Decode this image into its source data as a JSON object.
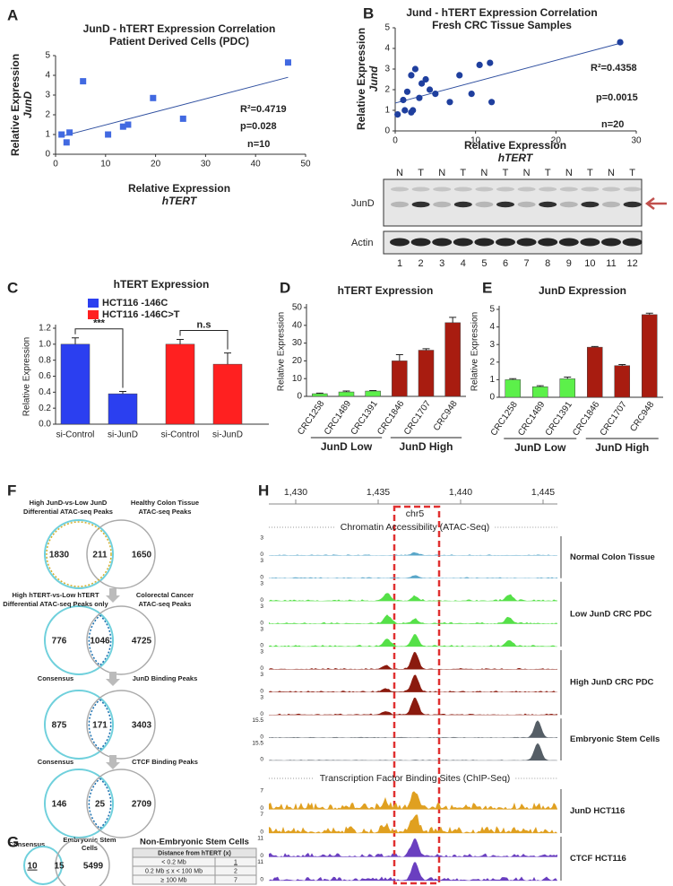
{
  "panel_labels": [
    "A",
    "B",
    "C",
    "D",
    "E",
    "F",
    "G",
    "H"
  ],
  "chart_data": [
    {
      "type": "scatter",
      "title": [
        "JunD - hTERT Expression Correlation",
        "Patient Derived Cells (PDC)"
      ],
      "x_label": [
        "Relative Expression",
        "hTERT"
      ],
      "y_label": [
        "Relative Expression",
        "JunD"
      ],
      "x": [
        1.2,
        2.2,
        2.8,
        5.5,
        10.5,
        13.5,
        14.5,
        19.5,
        25.5,
        46.5
      ],
      "values": [
        1.0,
        0.6,
        1.1,
        3.7,
        1.0,
        1.4,
        1.5,
        2.85,
        1.8,
        4.65
      ],
      "color": "#4169e1",
      "trend_line": {
        "x": [
          1.1,
          46.5
        ],
        "values": [
          0.9,
          3.9
        ]
      },
      "trend_color": "#3050a0",
      "xlim": [
        0,
        50
      ],
      "xticks": [
        0,
        10,
        20,
        30,
        40,
        50
      ],
      "ylim": [
        0,
        5
      ],
      "yticks": [
        0,
        1,
        2,
        3,
        4,
        5
      ],
      "annotations": [
        "R²=0.4719",
        "p=0.028",
        "n=10"
      ]
    },
    {
      "type": "scatter",
      "title": [
        "Jund - hTERT Expression Correlation",
        "Fresh CRC Tissue Samples"
      ],
      "x_label": [
        "Relative Expression",
        "hTERT"
      ],
      "y_label": [
        "Relative Expression",
        "Jund"
      ],
      "x": [
        0.3,
        1,
        1.2,
        1.5,
        2,
        2.2,
        2,
        2.5,
        3,
        3.3,
        3.8,
        4.3,
        5,
        6.8,
        8,
        9.5,
        10.5,
        11.8,
        12,
        28
      ],
      "values": [
        0.8,
        1.5,
        1.0,
        1.9,
        0.9,
        1.0,
        2.7,
        3.0,
        1.6,
        2.3,
        2.5,
        2.0,
        1.8,
        1.4,
        2.7,
        1.8,
        3.2,
        3.3,
        1.4,
        4.3
      ],
      "color": "#1f3f9e",
      "trend_line": {
        "x": [
          0,
          28
        ],
        "values": [
          1.35,
          4.25
        ]
      },
      "trend_color": "#3050a0",
      "xlim": [
        0,
        30
      ],
      "xticks": [
        0,
        10,
        20,
        30
      ],
      "ylim": [
        0,
        5
      ],
      "yticks": [
        0,
        1,
        2,
        3,
        4,
        5
      ],
      "annotations": [
        "R²=0.4358",
        "p=0.0015",
        "n=20"
      ]
    },
    {
      "type": "bar",
      "title": "hTERT Expression",
      "y_label": "Relative Expression",
      "categories": [
        "si-Control",
        "si-JunD",
        "si-Control",
        "si-JunD"
      ],
      "series": [
        {
          "name": "HCT116 -146C",
          "color": "#2b3ff0",
          "values": [
            1.0,
            0.38,
            null,
            null
          ],
          "errors": [
            0.08,
            0.03,
            null,
            null
          ]
        },
        {
          "name": "HCT116 -146C>T",
          "color": "#ff2020",
          "values": [
            null,
            null,
            1.0,
            0.75
          ],
          "errors": [
            null,
            null,
            0.06,
            0.14
          ]
        }
      ],
      "ylim": [
        0,
        1.2
      ],
      "yticks": [
        {
          "value": 0,
          "label": "0.0"
        },
        0.2,
        0.4,
        0.6,
        0.8,
        {
          "value": 1,
          "label": "1.0"
        },
        1.2
      ],
      "significance": [
        "***",
        "n.s"
      ]
    },
    {
      "type": "bar",
      "title": "hTERT Expression",
      "y_label": "Relative Expression",
      "categories": [
        "CRC1258",
        "CRC1489",
        "CRC1391",
        "CRC1846",
        "CRC1707",
        "CRC948"
      ],
      "values": [
        1.5,
        2.5,
        3,
        20,
        26,
        41.5
      ],
      "errors": [
        0.3,
        0.5,
        0.3,
        3.5,
        0.8,
        3
      ],
      "colors": [
        "#5cf04a",
        "#5cf04a",
        "#5cf04a",
        "#a81c10",
        "#a81c10",
        "#a81c10"
      ],
      "ylim": [
        0,
        50
      ],
      "yticks": [
        0,
        10,
        20,
        30,
        40,
        50
      ],
      "group_labels": [
        "JunD Low",
        "JunD High"
      ]
    },
    {
      "type": "bar",
      "title": "JunD Expression",
      "y_label": "Relative Expression",
      "categories": [
        "CRC1258",
        "CRC1489",
        "CRC1391",
        "CRC1846",
        "CRC1707",
        "CRC948"
      ],
      "values": [
        1,
        0.6,
        1.05,
        2.85,
        1.8,
        4.7
      ],
      "errors": [
        0.06,
        0.06,
        0.1,
        0.04,
        0.06,
        0.08
      ],
      "colors": [
        "#5cf04a",
        "#5cf04a",
        "#5cf04a",
        "#a81c10",
        "#a81c10",
        "#a81c10"
      ],
      "ylim": [
        0,
        5
      ],
      "yticks": [
        0,
        1,
        2,
        3,
        4,
        5
      ],
      "group_labels": [
        "JunD Low",
        "JunD High"
      ]
    }
  ],
  "blot": {
    "lanes_top": [
      "N",
      "T",
      "N",
      "T",
      "N",
      "T",
      "N",
      "T",
      "N",
      "T",
      "N",
      "T"
    ],
    "lanes_bottom": [
      "1",
      "2",
      "3",
      "4",
      "5",
      "6",
      "7",
      "8",
      "9",
      "10",
      "11",
      "12"
    ],
    "rows": [
      "JunD",
      "Actin"
    ]
  },
  "venn_f": [
    {
      "left_label": [
        "High JunD-vs-Low JunD",
        "Differential ATAC-seq Peaks"
      ],
      "right_label": [
        "Healthy Colon Tissue",
        "ATAC-seq Peaks"
      ],
      "counts": [
        1830,
        211,
        1650
      ]
    },
    {
      "left_label": [
        "High hTERT-vs-Low hTERT",
        "Differential ATAC-seq Peaks only"
      ],
      "right_label": [
        "Colorectal Cancer",
        "ATAC-seq Peaks"
      ],
      "counts": [
        776,
        1046,
        4725
      ]
    },
    {
      "left_label": [
        "Consensus"
      ],
      "right_label": [
        "JunD Binding Peaks"
      ],
      "counts": [
        875,
        171,
        3403
      ]
    },
    {
      "left_label": [
        "Consensus"
      ],
      "right_label": [
        "CTCF Binding Peaks"
      ],
      "counts": [
        146,
        25,
        2709
      ]
    }
  ],
  "venn_g": {
    "left_label": "Consensus",
    "right_label": [
      "Embryonic Stem",
      "Cells"
    ],
    "counts": [
      10,
      15,
      5499
    ]
  },
  "table_g": {
    "title": "Non-Embryonic Stem Cells",
    "header": "Distance from hTERT (x)",
    "rows": [
      [
        "< 0.2 Mb",
        1
      ],
      [
        "0.2 Mb ≤ x < 100 Mb",
        2
      ],
      [
        "≥ 100 Mb",
        7
      ]
    ]
  },
  "genome_h": {
    "axis_ticks": [
      "1,430",
      "1,435",
      "1,440",
      "1,445"
    ],
    "chromosome": "chr5",
    "sections": [
      {
        "title": "Chromatin Accessibility (ATAC-Seq)",
        "groups": [
          {
            "label": "Normal Colon Tissue",
            "color": "#5aa7c9",
            "tracks": [
              {
                "max": 3,
                "min": 0
              },
              {
                "max": 3,
                "min": 0
              }
            ]
          },
          {
            "label": "Low JunD CRC PDC",
            "color": "#55e048",
            "tracks": [
              {
                "max": 3,
                "min": 0
              },
              {
                "max": 3,
                "min": 0
              },
              {
                "max": 3,
                "min": 0
              }
            ]
          },
          {
            "label": "High JunD CRC PDC",
            "color": "#8b1a0e",
            "tracks": [
              {
                "max": 3,
                "min": 0
              },
              {
                "max": 3,
                "min": 0
              },
              {
                "max": 3,
                "min": 0
              }
            ]
          },
          {
            "label": "Embryonic Stem Cells",
            "color": "#555e66",
            "tracks": [
              {
                "max": 15.5,
                "min": 0
              },
              {
                "max": 15.5,
                "min": 0
              }
            ]
          }
        ]
      },
      {
        "title": "Transcription Factor Binding Sites (ChIP-Seq)",
        "groups": [
          {
            "label": "JunD HCT116",
            "color": "#e0a020",
            "tracks": [
              {
                "max": 7,
                "min": 0
              },
              {
                "max": 7,
                "min": 0
              }
            ]
          },
          {
            "label": "CTCF HCT116",
            "color": "#6a3fc0",
            "tracks": [
              {
                "max": 11,
                "min": 0
              },
              {
                "max": 11,
                "min": 0
              }
            ]
          }
        ]
      }
    ]
  }
}
